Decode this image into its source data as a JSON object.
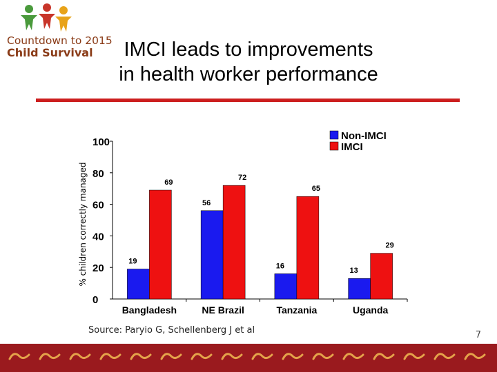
{
  "logo": {
    "line1": "Countdown to 2015",
    "line2": "Child Survival",
    "figure_colors": [
      "#4a9a3c",
      "#c8352a",
      "#e8a319"
    ]
  },
  "slide": {
    "title_line1": "IMCI leads to improvements",
    "title_line2": "in health worker performance",
    "source": "Source: Paryio G, Schellenberg J et al",
    "page_number": "7",
    "rule_color": "#cc1e1e"
  },
  "chart_data": {
    "type": "bar",
    "categories": [
      "Bangladesh",
      "NE Brazil",
      "Tanzania",
      "Uganda"
    ],
    "series": [
      {
        "name": "Non-IMCI",
        "values": [
          19,
          56,
          16,
          13
        ],
        "labels": [
          "19",
          "56",
          "16",
          "13"
        ],
        "color": "#1a1aef"
      },
      {
        "name": "IMCI",
        "values": [
          69,
          72,
          65,
          29
        ],
        "labels": [
          "69",
          "72",
          "65",
          "29"
        ],
        "color": "#ee1111"
      }
    ],
    "ylabel": "% children correctly managed",
    "ylim": [
      0,
      100
    ],
    "yticks": [
      0,
      20,
      40,
      60,
      80,
      100
    ],
    "grid": false,
    "legend_position": "top-right"
  }
}
